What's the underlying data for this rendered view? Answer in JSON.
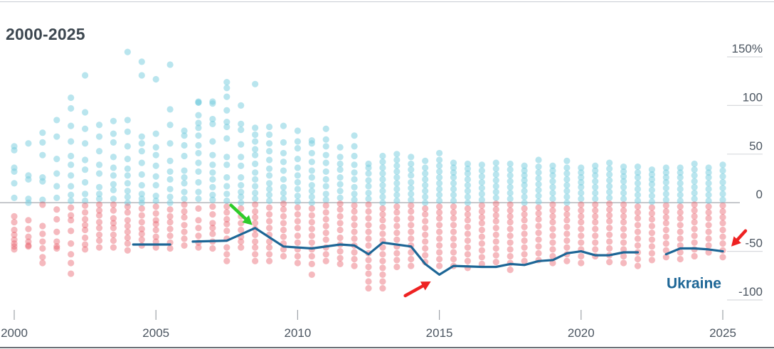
{
  "chart_data": {
    "type": "scatter",
    "title": "2000-2025",
    "xlabel": "",
    "ylabel": "",
    "xlim": [
      2000,
      2025
    ],
    "ylim": [
      -100,
      150
    ],
    "x_ticks": [
      2000,
      2005,
      2010,
      2015,
      2020,
      2025
    ],
    "x_tick_labels": [
      "2000",
      "2005",
      "2010",
      "2015",
      "2020",
      "2025"
    ],
    "y_ticks": [
      150,
      100,
      50,
      0,
      -50,
      -100
    ],
    "y_tick_labels": [
      "150%",
      "100",
      "50",
      "0",
      "-50",
      "-100"
    ],
    "grid": "horizontal",
    "colors": {
      "positive": "#7fcfe0",
      "negative": "#e9646e",
      "highlight": "#1d6696",
      "zero_line": "#b9bcc0",
      "grid": "#d8dade"
    },
    "highlight_series": {
      "name": "Ukraine",
      "segments": [
        [
          [
            2004.2,
            -43
          ],
          [
            2005.5,
            -43
          ]
        ],
        [
          [
            2006.3,
            -40
          ],
          [
            2007.5,
            -39
          ],
          [
            2008.5,
            -26
          ],
          [
            2009.5,
            -45
          ],
          [
            2010.5,
            -47
          ],
          [
            2011.5,
            -43
          ],
          [
            2012,
            -44
          ],
          [
            2012.5,
            -53
          ],
          [
            2013,
            -41
          ],
          [
            2014,
            -45
          ],
          [
            2014.5,
            -63
          ],
          [
            2015,
            -74
          ],
          [
            2015.5,
            -65
          ],
          [
            2016.5,
            -66
          ],
          [
            2017,
            -66
          ],
          [
            2017.5,
            -63
          ],
          [
            2018,
            -64
          ],
          [
            2018.5,
            -60
          ],
          [
            2019,
            -59
          ],
          [
            2019.5,
            -52
          ],
          [
            2020,
            -50
          ],
          [
            2020.5,
            -54
          ],
          [
            2021,
            -54
          ],
          [
            2021.5,
            -51
          ],
          [
            2022,
            -51
          ]
        ],
        [
          [
            2023,
            -53
          ],
          [
            2023.5,
            -47
          ],
          [
            2024,
            -47
          ],
          [
            2024.5,
            -48
          ],
          [
            2025,
            -50
          ]
        ]
      ]
    },
    "columns": [
      {
        "x": 2000,
        "values": [
          58,
          54,
          36,
          32,
          20,
          5,
          -14,
          -20,
          -28,
          -33,
          -38,
          -42,
          -45,
          -48
        ]
      },
      {
        "x": 2000.5,
        "values": [
          61,
          28,
          24,
          4,
          0,
          -18,
          -27,
          -35,
          -40,
          -44,
          -45
        ]
      },
      {
        "x": 2001,
        "values": [
          72,
          62,
          49,
          26,
          22,
          3,
          -2,
          -24,
          -32,
          -40,
          -47,
          -56,
          -62
        ]
      },
      {
        "x": 2001.5,
        "values": [
          85,
          68,
          45,
          30,
          17,
          5,
          -7,
          -17,
          -30,
          -40,
          -45,
          -47
        ]
      },
      {
        "x": 2002,
        "values": [
          108,
          97,
          79,
          63,
          48,
          39,
          28,
          17,
          8,
          2,
          -5,
          -13,
          -18,
          -29,
          -42,
          -53,
          -62,
          -73
        ]
      },
      {
        "x": 2002.5,
        "values": [
          131,
          93,
          76,
          61,
          44,
          34,
          21,
          9,
          2,
          -3,
          -10,
          -17,
          -23,
          -28,
          -36,
          -43,
          -48
        ]
      },
      {
        "x": 2003,
        "values": [
          80,
          68,
          53,
          39,
          30,
          16,
          9,
          4,
          -2,
          -8,
          -13,
          -20,
          -26,
          -33,
          -39,
          -46
        ]
      },
      {
        "x": 2003.5,
        "values": [
          84,
          71,
          62,
          47,
          36,
          28,
          19,
          13,
          4,
          -2,
          -8,
          -16,
          -21,
          -26,
          -33,
          -39,
          -46
        ]
      },
      {
        "x": 2004,
        "values": [
          155,
          85,
          73,
          58,
          45,
          35,
          28,
          20,
          12,
          6,
          0,
          -4,
          -10,
          -18,
          -24,
          -30,
          -36,
          -42,
          -49
        ]
      },
      {
        "x": 2004.5,
        "values": [
          145,
          131,
          68,
          61,
          53,
          41,
          29,
          18,
          9,
          4,
          0,
          -6,
          -13,
          -20,
          -27,
          -32,
          -38,
          -44
        ]
      },
      {
        "x": 2005,
        "values": [
          127,
          71,
          57,
          49,
          38,
          27,
          18,
          7,
          2,
          -4,
          -11,
          -18,
          -22,
          -28,
          -35,
          -40,
          -46
        ]
      },
      {
        "x": 2005.5,
        "values": [
          142,
          96,
          80,
          61,
          43,
          32,
          24,
          14,
          6,
          0,
          -7,
          -14,
          -20,
          -27,
          -34,
          -41,
          -47
        ]
      },
      {
        "x": 2006,
        "values": [
          74,
          69,
          59,
          48,
          33,
          26,
          20,
          11,
          4,
          -2,
          -9,
          -15,
          -23,
          -30,
          -37,
          -44
        ]
      },
      {
        "x": 2006.5,
        "values": [
          103,
          104,
          103,
          90,
          82,
          77,
          69,
          59,
          51,
          41,
          32,
          21,
          11,
          4,
          -6,
          -18,
          -26,
          -34,
          -41,
          -46
        ]
      },
      {
        "x": 2007,
        "values": [
          104,
          102,
          86,
          81,
          63,
          49,
          39,
          31,
          24,
          16,
          8,
          3,
          -4,
          -12,
          -21,
          -26,
          -32,
          -40,
          -47
        ]
      },
      {
        "x": 2007.5,
        "values": [
          124,
          118,
          109,
          95,
          83,
          78,
          66,
          47,
          39,
          26,
          17,
          9,
          2,
          -4,
          -10,
          -17,
          -22,
          -29,
          -37,
          -46,
          -53,
          -60
        ]
      },
      {
        "x": 2008,
        "values": [
          100,
          81,
          75,
          60,
          47,
          38,
          26,
          18,
          11,
          6,
          0,
          -6,
          -14,
          -21,
          -28,
          -35,
          -40,
          -46
        ]
      },
      {
        "x": 2008.5,
        "values": [
          122,
          77,
          70,
          63,
          55,
          49,
          40,
          31,
          24,
          17,
          10,
          4,
          -2,
          -9,
          -15,
          -21,
          -27,
          -33,
          -40,
          -46,
          -53,
          -60
        ]
      },
      {
        "x": 2009,
        "values": [
          78,
          70,
          61,
          53,
          44,
          35,
          28,
          20,
          14,
          8,
          2,
          -5,
          -12,
          -19,
          -26,
          -33,
          -40,
          -46,
          -53,
          -60
        ]
      },
      {
        "x": 2009.5,
        "values": [
          79,
          62,
          51,
          42,
          33,
          24,
          16,
          10,
          4,
          -1,
          -7,
          -14,
          -21,
          -28,
          -35,
          -42,
          -48,
          -55
        ]
      },
      {
        "x": 2010,
        "values": [
          74,
          63,
          56,
          45,
          36,
          28,
          21,
          14,
          7,
          1,
          -5,
          -12,
          -19,
          -26,
          -34,
          -41,
          -48,
          -55,
          -62
        ]
      },
      {
        "x": 2010.5,
        "values": [
          64,
          61,
          51,
          42,
          33,
          26,
          18,
          12,
          6,
          0,
          -6,
          -13,
          -20,
          -27,
          -34,
          -41,
          -48,
          -55,
          -63,
          -74
        ]
      },
      {
        "x": 2011,
        "values": [
          76,
          65,
          58,
          49,
          41,
          32,
          24,
          17,
          9,
          3,
          -3,
          -10,
          -17,
          -24,
          -31,
          -38,
          -46,
          -53,
          -60
        ]
      },
      {
        "x": 2011.5,
        "values": [
          57,
          47,
          40,
          34,
          26,
          19,
          12,
          5,
          -1,
          -7,
          -14,
          -21,
          -28,
          -36,
          -43,
          -50,
          -57,
          -63
        ]
      },
      {
        "x": 2012,
        "values": [
          69,
          58,
          48,
          39,
          31,
          24,
          16,
          9,
          3,
          -3,
          -9,
          -16,
          -23,
          -30,
          -37,
          -44,
          -51,
          -58,
          -65
        ]
      },
      {
        "x": 2012.5,
        "values": [
          40,
          36,
          30,
          23,
          17,
          10,
          4,
          -2,
          -9,
          -16,
          -23,
          -30,
          -37,
          -44,
          -52,
          -59,
          -66,
          -73,
          -81,
          -88
        ]
      },
      {
        "x": 2013,
        "values": [
          48,
          42,
          36,
          30,
          24,
          18,
          12,
          6,
          0,
          -6,
          -12,
          -18,
          -25,
          -32,
          -39,
          -46,
          -53,
          -60,
          -67,
          -74,
          -81,
          -88
        ]
      },
      {
        "x": 2013.5,
        "values": [
          50,
          44,
          38,
          32,
          26,
          20,
          14,
          8,
          2,
          -4,
          -10,
          -17,
          -24,
          -31,
          -38,
          -45,
          -52,
          -59,
          -66
        ]
      },
      {
        "x": 2014,
        "values": [
          47,
          40,
          34,
          28,
          21,
          15,
          9,
          3,
          -3,
          -9,
          -16,
          -23,
          -30,
          -37,
          -44,
          -51,
          -58,
          -65
        ]
      },
      {
        "x": 2014.5,
        "values": [
          43,
          36,
          30,
          24,
          18,
          12,
          6,
          0,
          -6,
          -12,
          -19,
          -26,
          -33,
          -40,
          -47,
          -54,
          -61
        ]
      },
      {
        "x": 2015,
        "values": [
          51,
          44,
          38,
          32,
          26,
          20,
          14,
          8,
          2,
          -4,
          -10,
          -16,
          -23,
          -30,
          -37,
          -44,
          -51,
          -58,
          -65
        ]
      },
      {
        "x": 2015.5,
        "values": [
          41,
          36,
          31,
          26,
          20,
          14,
          8,
          2,
          -4,
          -10,
          -16,
          -23,
          -30,
          -37,
          -44,
          -51,
          -58,
          -65
        ]
      },
      {
        "x": 2016,
        "values": [
          40,
          35,
          30,
          24,
          18,
          12,
          6,
          0,
          -6,
          -12,
          -18,
          -25,
          -32,
          -39,
          -46,
          -53,
          -60,
          -67
        ]
      },
      {
        "x": 2016.5,
        "values": [
          39,
          33,
          27,
          21,
          15,
          9,
          3,
          -3,
          -9,
          -15,
          -21,
          -28,
          -35,
          -42,
          -49,
          -56,
          -63
        ]
      },
      {
        "x": 2017,
        "values": [
          41,
          35,
          29,
          23,
          17,
          11,
          5,
          -1,
          -7,
          -13,
          -19,
          -26,
          -33,
          -40,
          -47,
          -54,
          -61
        ]
      },
      {
        "x": 2017.5,
        "values": [
          40,
          34,
          28,
          22,
          16,
          10,
          4,
          -2,
          -8,
          -14,
          -20,
          -27,
          -34,
          -41,
          -48,
          -55,
          -62,
          -69
        ]
      },
      {
        "x": 2018,
        "values": [
          38,
          33,
          28,
          23,
          18,
          12,
          6,
          0,
          -6,
          -12,
          -18,
          -25,
          -32,
          -39,
          -46,
          -53,
          -60
        ]
      },
      {
        "x": 2018.5,
        "values": [
          44,
          37,
          31,
          25,
          19,
          13,
          7,
          1,
          -5,
          -11,
          -17,
          -24,
          -31,
          -38,
          -45,
          -52,
          -59
        ]
      },
      {
        "x": 2019,
        "values": [
          38,
          33,
          28,
          22,
          16,
          10,
          4,
          -2,
          -8,
          -14,
          -20,
          -27,
          -34,
          -41,
          -48,
          -55,
          -62
        ]
      },
      {
        "x": 2019.5,
        "values": [
          43,
          36,
          30,
          24,
          18,
          12,
          6,
          0,
          -6,
          -12,
          -18,
          -25,
          -32,
          -39,
          -46,
          -53,
          -60
        ]
      },
      {
        "x": 2020,
        "values": [
          36,
          31,
          26,
          21,
          16,
          10,
          4,
          -2,
          -8,
          -14,
          -20,
          -27,
          -34,
          -41,
          -48,
          -55,
          -62
        ]
      },
      {
        "x": 2020.5,
        "values": [
          38,
          33,
          28,
          22,
          16,
          10,
          4,
          -2,
          -8,
          -14,
          -20,
          -27,
          -34,
          -41,
          -48,
          -55
        ]
      },
      {
        "x": 2021,
        "values": [
          41,
          35,
          29,
          23,
          17,
          11,
          5,
          -1,
          -7,
          -13,
          -19,
          -26,
          -33,
          -40,
          -47,
          -54,
          -61
        ]
      },
      {
        "x": 2021.5,
        "values": [
          37,
          32,
          27,
          22,
          16,
          10,
          4,
          -2,
          -8,
          -14,
          -20,
          -27,
          -34,
          -41,
          -48,
          -55,
          -62
        ]
      },
      {
        "x": 2022,
        "values": [
          37,
          31,
          26,
          20,
          14,
          8,
          2,
          -4,
          -10,
          -16,
          -23,
          -30,
          -37,
          -44,
          -51,
          -58,
          -65
        ]
      },
      {
        "x": 2022.5,
        "values": [
          34,
          29,
          24,
          19,
          13,
          7,
          1,
          -5,
          -11,
          -17,
          -24,
          -31,
          -38,
          -45,
          -52,
          -59
        ]
      },
      {
        "x": 2023,
        "values": [
          36,
          31,
          26,
          21,
          15,
          9,
          3,
          -3,
          -9,
          -15,
          -21,
          -28,
          -35,
          -42,
          -49,
          -56
        ]
      },
      {
        "x": 2023.5,
        "values": [
          36,
          31,
          26,
          20,
          14,
          8,
          2,
          -4,
          -10,
          -16,
          -23,
          -30,
          -37,
          -44,
          -51,
          -58
        ]
      },
      {
        "x": 2024,
        "values": [
          40,
          34,
          28,
          22,
          16,
          10,
          4,
          -2,
          -8,
          -14,
          -20,
          -27,
          -34,
          -41,
          -48,
          -55
        ]
      },
      {
        "x": 2024.5,
        "values": [
          36,
          31,
          26,
          20,
          14,
          8,
          2,
          -4,
          -10,
          -16,
          -23,
          -30,
          -37,
          -44,
          -51
        ]
      },
      {
        "x": 2025,
        "values": [
          39,
          33,
          27,
          21,
          15,
          9,
          3,
          -3,
          -9,
          -15,
          -21,
          -28,
          -35,
          -42,
          -49,
          -56
        ]
      }
    ],
    "annotations": [
      {
        "type": "arrow",
        "color": "#2ecc2a",
        "x": 2008.4,
        "y": -23
      },
      {
        "type": "arrow",
        "color": "#ee2222",
        "x": 2014.7,
        "y": -81
      },
      {
        "type": "arrow",
        "color": "#ee2222",
        "x": 2025.3,
        "y": -45
      }
    ]
  }
}
